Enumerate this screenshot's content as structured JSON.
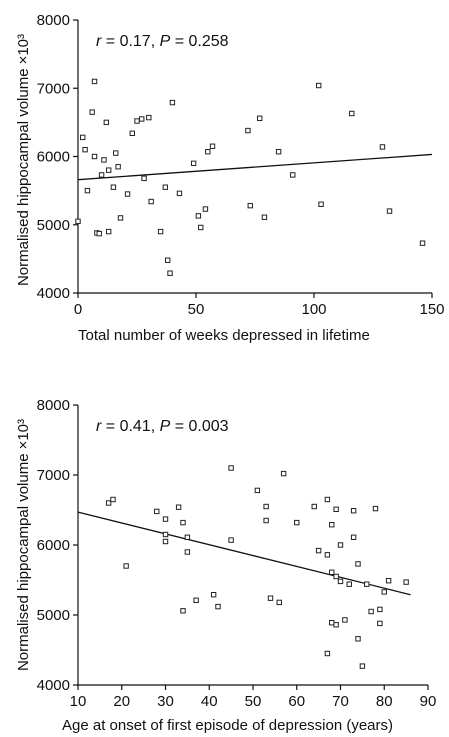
{
  "ylabel_text": "Normalised hippocampal volume",
  "ylabel_unit": "×10³",
  "chart_data": [
    {
      "type": "scatter",
      "title": "",
      "annotation_r": "r",
      "annotation_stats": " = 0.17, ",
      "annotation_p": "P",
      "annotation_pval": " = 0.258",
      "xlabel": "Total number of weeks depressed in lifetime",
      "ylabel": "Normalised hippocampal volume ×10³",
      "xlim": [
        0,
        150
      ],
      "ylim": [
        4000,
        8000
      ],
      "xticks": [
        "0",
        "50",
        "100",
        "150"
      ],
      "yticks": [
        "4000",
        "5000",
        "6000",
        "7000",
        "8000"
      ],
      "grid": false,
      "regression": {
        "x": [
          0,
          150
        ],
        "y": [
          5660,
          6030
        ]
      },
      "points": [
        [
          0,
          5050
        ],
        [
          2,
          6280
        ],
        [
          3,
          6100
        ],
        [
          4,
          5500
        ],
        [
          6,
          6650
        ],
        [
          7,
          7100
        ],
        [
          7,
          6000
        ],
        [
          8,
          4880
        ],
        [
          9,
          4870
        ],
        [
          10,
          5730
        ],
        [
          11,
          5950
        ],
        [
          12,
          6500
        ],
        [
          13,
          5800
        ],
        [
          13,
          4900
        ],
        [
          15,
          5550
        ],
        [
          16,
          6050
        ],
        [
          17,
          5850
        ],
        [
          18,
          5100
        ],
        [
          21,
          5450
        ],
        [
          23,
          6340
        ],
        [
          25,
          6520
        ],
        [
          27,
          6550
        ],
        [
          28,
          5680
        ],
        [
          30,
          6570
        ],
        [
          31,
          5340
        ],
        [
          35,
          4900
        ],
        [
          37,
          5550
        ],
        [
          38,
          4480
        ],
        [
          39,
          4290
        ],
        [
          40,
          6790
        ],
        [
          43,
          5460
        ],
        [
          49,
          5900
        ],
        [
          51,
          5130
        ],
        [
          52,
          4960
        ],
        [
          54,
          5230
        ],
        [
          55,
          6070
        ],
        [
          57,
          6150
        ],
        [
          72,
          6380
        ],
        [
          73,
          5280
        ],
        [
          77,
          6560
        ],
        [
          79,
          5110
        ],
        [
          85,
          6070
        ],
        [
          91,
          5730
        ],
        [
          102,
          7040
        ],
        [
          103,
          5300
        ],
        [
          116,
          6630
        ],
        [
          129,
          6140
        ],
        [
          132,
          5200
        ],
        [
          146,
          4730
        ]
      ]
    },
    {
      "type": "scatter",
      "title": "",
      "annotation_r": "r",
      "annotation_stats": " = 0.41, ",
      "annotation_p": "P",
      "annotation_pval": " = 0.003",
      "xlabel": "Age at onset of first episode of depression (years)",
      "ylabel": "Normalised hippocampal volume ×10³",
      "xlim": [
        10,
        90
      ],
      "ylim": [
        4000,
        8000
      ],
      "xticks": [
        "10",
        "20",
        "30",
        "40",
        "50",
        "60",
        "70",
        "80",
        "90"
      ],
      "yticks": [
        "4000",
        "5000",
        "6000",
        "7000",
        "8000"
      ],
      "grid": false,
      "regression": {
        "x": [
          10,
          86
        ],
        "y": [
          6470,
          5290
        ]
      },
      "points": [
        [
          17,
          6600
        ],
        [
          18,
          6650
        ],
        [
          21,
          5700
        ],
        [
          28,
          6480
        ],
        [
          30,
          6370
        ],
        [
          30,
          6150
        ],
        [
          30,
          6050
        ],
        [
          33,
          6540
        ],
        [
          34,
          6320
        ],
        [
          35,
          6110
        ],
        [
          35,
          5900
        ],
        [
          34,
          5060
        ],
        [
          37,
          5210
        ],
        [
          41,
          5290
        ],
        [
          42,
          5120
        ],
        [
          45,
          7100
        ],
        [
          45,
          6070
        ],
        [
          51,
          6780
        ],
        [
          53,
          6350
        ],
        [
          53,
          6550
        ],
        [
          54,
          5240
        ],
        [
          56,
          5180
        ],
        [
          57,
          7020
        ],
        [
          60,
          6320
        ],
        [
          64,
          6550
        ],
        [
          65,
          5920
        ],
        [
          67,
          6650
        ],
        [
          67,
          5860
        ],
        [
          67,
          4450
        ],
        [
          68,
          6290
        ],
        [
          68,
          5610
        ],
        [
          68,
          4890
        ],
        [
          69,
          6510
        ],
        [
          69,
          5550
        ],
        [
          69,
          4860
        ],
        [
          70,
          6000
        ],
        [
          70,
          5480
        ],
        [
          71,
          4930
        ],
        [
          72,
          5440
        ],
        [
          73,
          6490
        ],
        [
          73,
          6110
        ],
        [
          74,
          5730
        ],
        [
          74,
          4660
        ],
        [
          75,
          4270
        ],
        [
          76,
          5440
        ],
        [
          77,
          5050
        ],
        [
          78,
          6520
        ],
        [
          79,
          4880
        ],
        [
          79,
          5080
        ],
        [
          80,
          5330
        ],
        [
          81,
          5490
        ],
        [
          85,
          5470
        ]
      ]
    }
  ]
}
